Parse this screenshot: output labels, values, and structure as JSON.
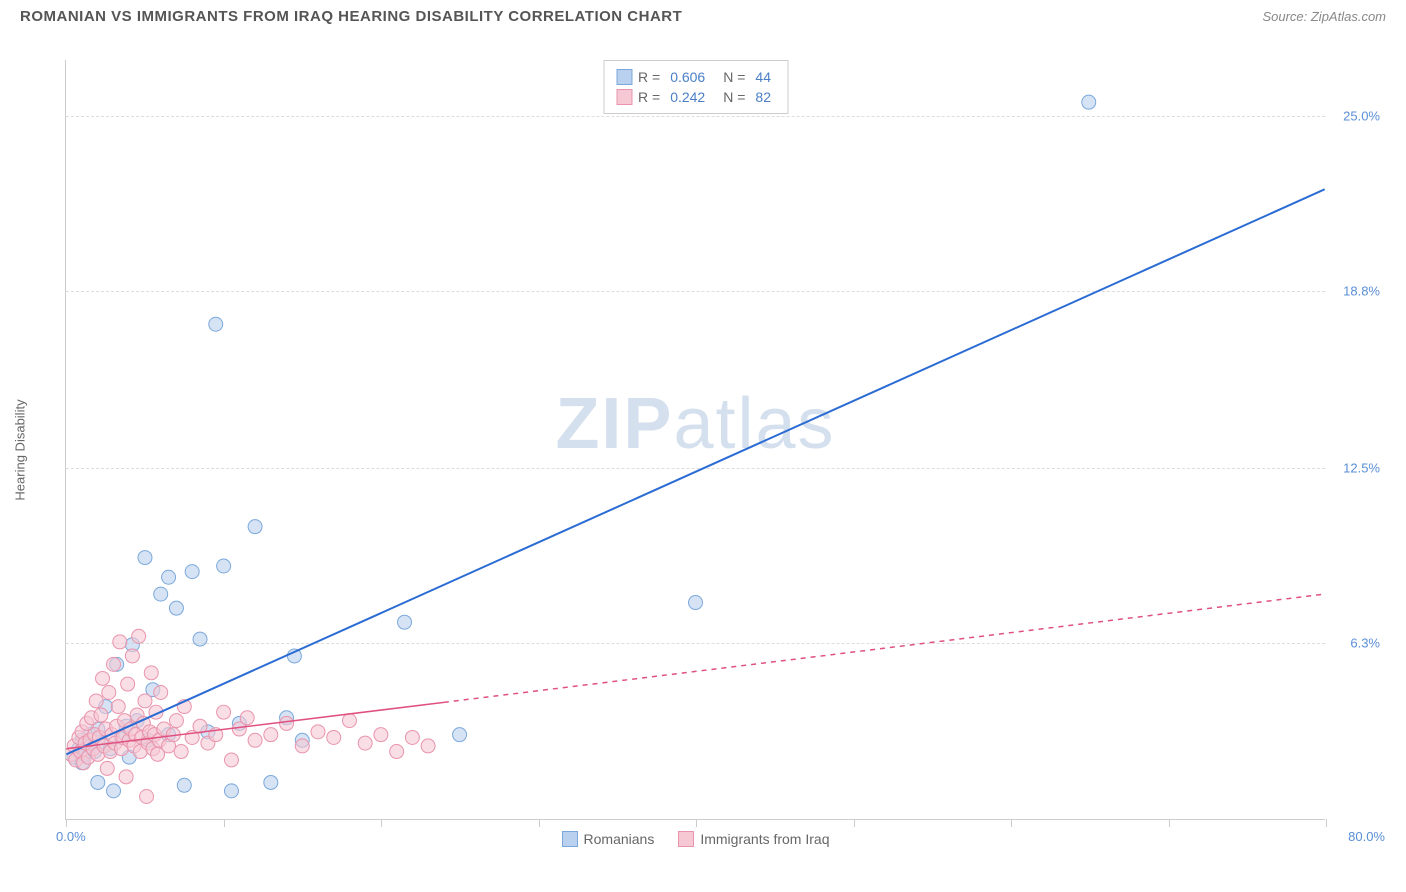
{
  "title": "ROMANIAN VS IMMIGRANTS FROM IRAQ HEARING DISABILITY CORRELATION CHART",
  "source": "Source: ZipAtlas.com",
  "watermark_prefix": "ZIP",
  "watermark_suffix": "atlas",
  "ylabel": "Hearing Disability",
  "chart": {
    "type": "scatter",
    "xlim": [
      0,
      80
    ],
    "ylim": [
      0,
      27
    ],
    "x_min_label": "0.0%",
    "x_max_label": "80.0%",
    "y_ticks": [
      6.3,
      12.5,
      18.8,
      25.0
    ],
    "y_tick_labels": [
      "6.3%",
      "12.5%",
      "18.8%",
      "25.0%"
    ],
    "x_tick_positions": [
      0,
      10,
      20,
      30,
      40,
      50,
      60,
      70,
      80
    ],
    "background_color": "#ffffff",
    "grid_color": "#dddddd",
    "axis_color": "#cccccc",
    "series": [
      {
        "name": "Romanians",
        "color_fill": "#b9d1ee",
        "color_stroke": "#7ba8db",
        "marker_radius": 7,
        "fill_opacity": 0.6,
        "r_value": "0.606",
        "n_value": "44",
        "trend": {
          "x1": 0,
          "y1": 2.3,
          "x2": 80,
          "y2": 22.4,
          "solid_until_x": 80,
          "color": "#2b6cd4",
          "width": 2
        },
        "points": [
          [
            0.5,
            2.2
          ],
          [
            0.8,
            2.5
          ],
          [
            1.0,
            2.0
          ],
          [
            1.0,
            2.8
          ],
          [
            1.2,
            2.3
          ],
          [
            1.5,
            3.0
          ],
          [
            1.5,
            2.6
          ],
          [
            1.8,
            2.4
          ],
          [
            2.0,
            1.3
          ],
          [
            2.0,
            3.2
          ],
          [
            2.3,
            2.7
          ],
          [
            2.5,
            4.0
          ],
          [
            2.8,
            2.5
          ],
          [
            3.0,
            1.0
          ],
          [
            3.2,
            5.5
          ],
          [
            3.5,
            2.9
          ],
          [
            3.8,
            3.3
          ],
          [
            4.0,
            2.2
          ],
          [
            4.2,
            6.2
          ],
          [
            4.5,
            3.5
          ],
          [
            5.0,
            9.3
          ],
          [
            5.2,
            2.8
          ],
          [
            5.5,
            4.6
          ],
          [
            6.0,
            8.0
          ],
          [
            6.5,
            8.6
          ],
          [
            6.5,
            3.0
          ],
          [
            7.0,
            7.5
          ],
          [
            7.5,
            1.2
          ],
          [
            8.0,
            8.8
          ],
          [
            8.5,
            6.4
          ],
          [
            9.0,
            3.1
          ],
          [
            9.5,
            17.6
          ],
          [
            10.0,
            9.0
          ],
          [
            10.5,
            1.0
          ],
          [
            11.0,
            3.4
          ],
          [
            12.0,
            10.4
          ],
          [
            13.0,
            1.3
          ],
          [
            14.0,
            3.6
          ],
          [
            14.5,
            5.8
          ],
          [
            15.0,
            2.8
          ],
          [
            21.5,
            7.0
          ],
          [
            25.0,
            3.0
          ],
          [
            40.0,
            7.7
          ],
          [
            65.0,
            25.5
          ]
        ]
      },
      {
        "name": "Immigrants from Iraq",
        "color_fill": "#f5c8d3",
        "color_stroke": "#e994ac",
        "marker_radius": 7,
        "fill_opacity": 0.6,
        "r_value": "0.242",
        "n_value": "82",
        "trend": {
          "x1": 0,
          "y1": 2.5,
          "x2": 80,
          "y2": 8.0,
          "solid_until_x": 24,
          "color": "#e05080",
          "width": 1.5,
          "dash": "5,5"
        },
        "points": [
          [
            0.3,
            2.3
          ],
          [
            0.5,
            2.6
          ],
          [
            0.6,
            2.1
          ],
          [
            0.8,
            2.9
          ],
          [
            0.9,
            2.4
          ],
          [
            1.0,
            3.1
          ],
          [
            1.1,
            2.0
          ],
          [
            1.2,
            2.7
          ],
          [
            1.3,
            3.4
          ],
          [
            1.4,
            2.2
          ],
          [
            1.5,
            2.8
          ],
          [
            1.6,
            3.6
          ],
          [
            1.7,
            2.5
          ],
          [
            1.8,
            3.0
          ],
          [
            1.9,
            4.2
          ],
          [
            2.0,
            2.3
          ],
          [
            2.1,
            2.9
          ],
          [
            2.2,
            3.7
          ],
          [
            2.3,
            5.0
          ],
          [
            2.4,
            2.6
          ],
          [
            2.5,
            3.2
          ],
          [
            2.6,
            1.8
          ],
          [
            2.7,
            4.5
          ],
          [
            2.8,
            2.4
          ],
          [
            2.9,
            3.0
          ],
          [
            3.0,
            5.5
          ],
          [
            3.1,
            2.7
          ],
          [
            3.2,
            3.3
          ],
          [
            3.3,
            4.0
          ],
          [
            3.4,
            6.3
          ],
          [
            3.5,
            2.5
          ],
          [
            3.6,
            2.9
          ],
          [
            3.7,
            3.5
          ],
          [
            3.8,
            1.5
          ],
          [
            3.9,
            4.8
          ],
          [
            4.0,
            2.8
          ],
          [
            4.1,
            3.2
          ],
          [
            4.2,
            5.8
          ],
          [
            4.3,
            2.6
          ],
          [
            4.4,
            3.0
          ],
          [
            4.5,
            3.7
          ],
          [
            4.6,
            6.5
          ],
          [
            4.7,
            2.4
          ],
          [
            4.8,
            2.9
          ],
          [
            4.9,
            3.4
          ],
          [
            5.0,
            4.2
          ],
          [
            5.1,
            0.8
          ],
          [
            5.2,
            2.7
          ],
          [
            5.3,
            3.1
          ],
          [
            5.4,
            5.2
          ],
          [
            5.5,
            2.5
          ],
          [
            5.6,
            3.0
          ],
          [
            5.7,
            3.8
          ],
          [
            5.8,
            2.3
          ],
          [
            5.9,
            2.8
          ],
          [
            6.0,
            4.5
          ],
          [
            6.2,
            3.2
          ],
          [
            6.5,
            2.6
          ],
          [
            6.8,
            3.0
          ],
          [
            7.0,
            3.5
          ],
          [
            7.3,
            2.4
          ],
          [
            7.5,
            4.0
          ],
          [
            8.0,
            2.9
          ],
          [
            8.5,
            3.3
          ],
          [
            9.0,
            2.7
          ],
          [
            9.5,
            3.0
          ],
          [
            10.0,
            3.8
          ],
          [
            10.5,
            2.1
          ],
          [
            11.0,
            3.2
          ],
          [
            11.5,
            3.6
          ],
          [
            12.0,
            2.8
          ],
          [
            13.0,
            3.0
          ],
          [
            14.0,
            3.4
          ],
          [
            15.0,
            2.6
          ],
          [
            16.0,
            3.1
          ],
          [
            17.0,
            2.9
          ],
          [
            18.0,
            3.5
          ],
          [
            19.0,
            2.7
          ],
          [
            20.0,
            3.0
          ],
          [
            21.0,
            2.4
          ],
          [
            22.0,
            2.9
          ],
          [
            23.0,
            2.6
          ]
        ]
      }
    ],
    "legend_bottom": [
      {
        "label": "Romanians",
        "fill": "#b9d1ee",
        "stroke": "#7ba8db"
      },
      {
        "label": "Immigrants from Iraq",
        "fill": "#f5c8d3",
        "stroke": "#e994ac"
      }
    ]
  }
}
